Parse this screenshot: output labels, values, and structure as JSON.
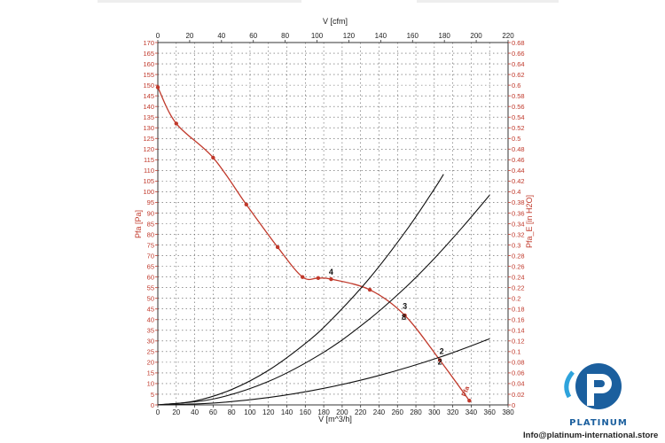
{
  "chart_data": {
    "type": "line",
    "title": "",
    "x_bottom": {
      "label": "V [m^3/h]",
      "range": [
        0,
        380
      ],
      "ticks": [
        0,
        20,
        40,
        60,
        80,
        100,
        120,
        140,
        160,
        180,
        200,
        220,
        240,
        260,
        280,
        300,
        320,
        340,
        360,
        380
      ]
    },
    "x_top": {
      "label": "V [cfm]",
      "range": [
        0,
        220
      ],
      "ticks": [
        0,
        20,
        40,
        60,
        80,
        100,
        120,
        140,
        160,
        180,
        200,
        220
      ]
    },
    "y_left": {
      "label": "Pfa [Pa]",
      "range": [
        0,
        170
      ],
      "ticks": [
        0,
        5,
        10,
        15,
        20,
        25,
        30,
        35,
        40,
        45,
        50,
        55,
        60,
        65,
        70,
        75,
        80,
        85,
        90,
        95,
        100,
        105,
        110,
        115,
        120,
        125,
        130,
        135,
        140,
        145,
        150,
        155,
        160,
        165,
        170
      ]
    },
    "y_right": {
      "label": "Pfa_E [in H2O]",
      "range": [
        0,
        0.68
      ],
      "ticks": [
        "0",
        "0.02",
        "0.04",
        "0.06",
        "0.08",
        "0.1",
        "0.12",
        "0.14",
        "0.16",
        "0.18",
        "0.2",
        "0.22",
        "0.24",
        "0.26",
        "0.28",
        "0.3",
        "0.32",
        "0.34",
        "0.36",
        "0.38",
        "0.4",
        "0.42",
        "0.44",
        "0.46",
        "0.48",
        "0.5",
        "0.52",
        "0.54",
        "0.56",
        "0.58",
        "0.6",
        "0.62",
        "0.64",
        "0.66",
        "0.68"
      ]
    },
    "grid": true,
    "series": [
      {
        "name": "Pfa",
        "color": "#c0392b",
        "markers": true,
        "x": [
          0,
          20,
          60,
          96,
          130,
          157,
          174,
          188,
          230,
          268,
          306,
          338
        ],
        "y": [
          149,
          132,
          116,
          94,
          74,
          60,
          59.5,
          59,
          54,
          42,
          21,
          2
        ]
      },
      {
        "name": "",
        "color": "#111111",
        "markers": false,
        "x": [
          0,
          40,
          80,
          120,
          160,
          188,
          230,
          270,
          300,
          310
        ],
        "y": [
          0,
          1.8,
          7.2,
          16.2,
          28.8,
          39.8,
          59.6,
          82.1,
          101.3,
          108.2
        ]
      },
      {
        "name": "",
        "color": "#111111",
        "markers": false,
        "x": [
          0,
          60,
          120,
          180,
          228,
          268,
          300,
          330,
          360
        ],
        "y": [
          0,
          2.75,
          11.0,
          24.7,
          39.7,
          54.8,
          68.7,
          83.1,
          98.4
        ]
      },
      {
        "name": "",
        "color": "#111111",
        "markers": false,
        "x": [
          0,
          60,
          120,
          180,
          240,
          306,
          360
        ],
        "y": [
          0,
          0.86,
          3.46,
          7.78,
          13.8,
          22.4,
          31.0
        ]
      }
    ],
    "point_labels": [
      {
        "text": "4",
        "x": 188,
        "y": 61
      },
      {
        "text": "3",
        "x": 268,
        "y": 45
      },
      {
        "text": "8",
        "x": 267,
        "y": 40
      },
      {
        "text": "2",
        "x": 308,
        "y": 24
      },
      {
        "text": "2",
        "x": 306,
        "y": 19
      },
      {
        "text": "Pfa",
        "x": 336,
        "y": 6
      }
    ]
  },
  "watermark": {
    "brand": "PLATINUM",
    "contact": "Info@platinum-international.store",
    "color": "#1b5f9e"
  }
}
